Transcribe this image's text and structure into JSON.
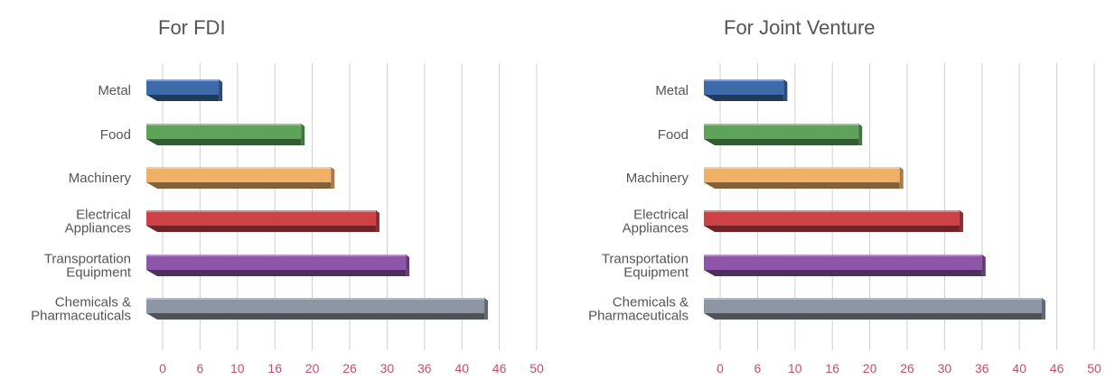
{
  "chart_data": [
    {
      "type": "bar",
      "orientation": "horizontal",
      "title": "For FDI",
      "categories": [
        "Metal",
        "Food",
        "Machinery",
        "Electrical\nAppliances",
        "Transportation\nEquipment",
        "Chemicals &\nPharmaceuticals"
      ],
      "values": [
        7.5,
        18.5,
        22.5,
        28.5,
        32.5,
        43
      ],
      "colors": [
        "#3d6aa8",
        "#5ea35a",
        "#f0b066",
        "#cc4246",
        "#8e56a8",
        "#8e96a3"
      ],
      "xticks": [
        "0",
        "6",
        "10",
        "16",
        "20",
        "26",
        "30",
        "36",
        "40",
        "46",
        "50"
      ],
      "xlim": [
        0,
        50
      ],
      "tick_label_color": "#c0506e",
      "grid": true
    },
    {
      "type": "bar",
      "orientation": "horizontal",
      "title": "For Joint Venture",
      "categories": [
        "Metal",
        "Food",
        "Machinery",
        "Electrical\nAppliances",
        "Transportation\nEquipment",
        "Chemicals &\nPharmaceuticals"
      ],
      "values": [
        8.5,
        18.5,
        24,
        32,
        35,
        43
      ],
      "colors": [
        "#3d6aa8",
        "#5ea35a",
        "#f0b066",
        "#cc4246",
        "#8e56a8",
        "#8e96a3"
      ],
      "xticks": [
        "0",
        "6",
        "10",
        "16",
        "20",
        "26",
        "30",
        "36",
        "40",
        "46",
        "50"
      ],
      "xlim": [
        0,
        50
      ],
      "tick_label_color": "#c0506e",
      "grid": true
    }
  ]
}
